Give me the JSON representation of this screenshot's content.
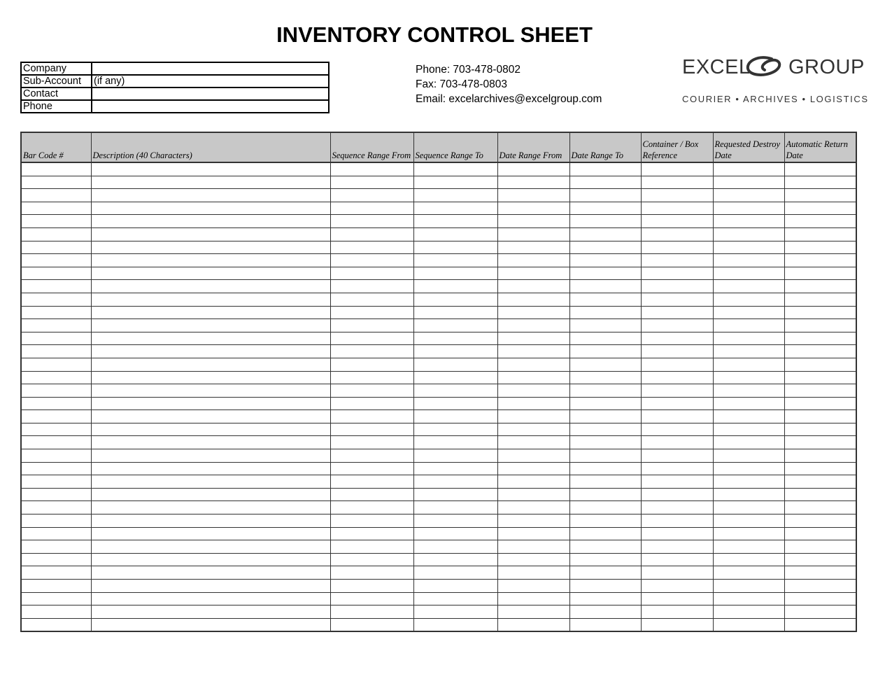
{
  "header": {
    "title": "INVENTORY CONTROL SHEET"
  },
  "account_fields": {
    "rows": [
      [
        "Company"
      ],
      [
        "Sub-Account",
        "(if any)"
      ],
      [
        "Contact"
      ],
      [
        "Phone"
      ]
    ]
  },
  "contact": {
    "lines": [
      "Phone:  703-478-0802",
      "Fax:  703-478-0803",
      "Email: excelarchives@excelgroup.com"
    ]
  },
  "logo": {
    "name_left": "EXCEL",
    "name_right": "GROUP",
    "tagline": "COURIER • ARCHIVES • LOGISTICS"
  },
  "inventory_table": {
    "columns": [
      "Bar Code #",
      "Description (40 Characters)",
      "Sequence Range From",
      "Sequence Range To",
      "Date Range From",
      "Date Range To",
      "Container / Box Reference",
      "Requested Destroy Date",
      "Automatic Return Date"
    ]
  }
}
